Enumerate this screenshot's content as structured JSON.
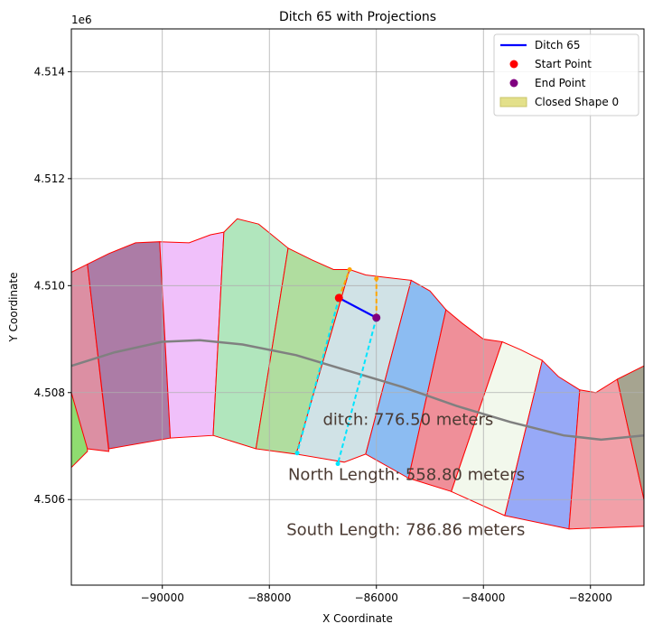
{
  "chart_data": {
    "type": "scatter",
    "title": "Ditch 65 with Projections",
    "xlabel": "X Coordinate",
    "ylabel": "Y Coordinate",
    "y_offset_label": "1e6",
    "xlim": [
      -91700,
      -81000
    ],
    "ylim": [
      4504400,
      4514800
    ],
    "y_scale": 1000000,
    "x_ticks": [
      -90000,
      -88000,
      -86000,
      -84000,
      -82000
    ],
    "y_ticks": [
      4506000,
      4508000,
      4510000,
      4512000,
      4514000
    ],
    "x_tick_labels": [
      "−90000",
      "−88000",
      "−86000",
      "−84000",
      "−82000"
    ],
    "y_tick_labels": [
      "4.506",
      "4.508",
      "4.510",
      "4.512",
      "4.514"
    ],
    "grid": true,
    "legend_position": "top-right",
    "legend": [
      {
        "label": "Ditch 65",
        "kind": "line",
        "color": "#0000ff"
      },
      {
        "label": "Start Point",
        "kind": "marker",
        "color": "#ff0000"
      },
      {
        "label": "End Point",
        "kind": "marker",
        "color": "#800080"
      },
      {
        "label": "Closed Shape 0",
        "kind": "patch",
        "color": "#e3e08a"
      }
    ],
    "shapes": [
      {
        "color": "#8fdc70",
        "points": [
          [
            -91700,
            4508100
          ],
          [
            -91400,
            4507300
          ],
          [
            -91400,
            4506900
          ],
          [
            -91700,
            4506600
          ]
        ]
      },
      {
        "color": "#dc8fa3",
        "points": [
          [
            -91700,
            4510250
          ],
          [
            -91400,
            4510400
          ],
          [
            -91000,
            4506900
          ],
          [
            -91400,
            4506950
          ],
          [
            -91700,
            4508000
          ]
        ]
      },
      {
        "color": "#ac7ca6",
        "points": [
          [
            -91400,
            4510400
          ],
          [
            -91000,
            4510600
          ],
          [
            -90500,
            4510800
          ],
          [
            -90050,
            4510820
          ],
          [
            -89850,
            4507150
          ],
          [
            -91000,
            4506950
          ]
        ]
      },
      {
        "color": "#f0c0fa",
        "points": [
          [
            -90050,
            4510820
          ],
          [
            -89500,
            4510800
          ],
          [
            -89100,
            4510950
          ],
          [
            -88850,
            4511000
          ],
          [
            -89050,
            4507200
          ],
          [
            -89850,
            4507150
          ]
        ]
      },
      {
        "color": "#b1e6bd",
        "points": [
          [
            -88850,
            4511000
          ],
          [
            -88600,
            4511250
          ],
          [
            -88200,
            4511150
          ],
          [
            -87650,
            4510700
          ],
          [
            -88250,
            4506950
          ],
          [
            -89050,
            4507200
          ]
        ]
      },
      {
        "color": "#b0dd9f",
        "points": [
          [
            -87650,
            4510700
          ],
          [
            -87200,
            4510480
          ],
          [
            -86800,
            4510300
          ],
          [
            -86500,
            4510300
          ],
          [
            -87500,
            4506850
          ],
          [
            -88250,
            4506950
          ]
        ]
      },
      {
        "color": "#d0e2e6",
        "points": [
          [
            -86500,
            4510300
          ],
          [
            -86200,
            4510200
          ],
          [
            -85800,
            4510150
          ],
          [
            -85350,
            4510100
          ],
          [
            -86200,
            4506850
          ],
          [
            -86600,
            4506700
          ],
          [
            -87500,
            4506850
          ]
        ]
      },
      {
        "color": "#8cbcf2",
        "points": [
          [
            -85350,
            4510100
          ],
          [
            -85000,
            4509900
          ],
          [
            -84700,
            4509550
          ],
          [
            -85400,
            4506400
          ],
          [
            -86200,
            4506850
          ]
        ]
      },
      {
        "color": "#ef8f99",
        "points": [
          [
            -84700,
            4509550
          ],
          [
            -84400,
            4509300
          ],
          [
            -84000,
            4509000
          ],
          [
            -83650,
            4508950
          ],
          [
            -84600,
            4506150
          ],
          [
            -85400,
            4506400
          ]
        ]
      },
      {
        "color": "#f2f8ec",
        "points": [
          [
            -83650,
            4508950
          ],
          [
            -83300,
            4508800
          ],
          [
            -82900,
            4508600
          ],
          [
            -83600,
            4505700
          ],
          [
            -84600,
            4506150
          ]
        ]
      },
      {
        "color": "#97a9f7",
        "points": [
          [
            -82900,
            4508600
          ],
          [
            -82600,
            4508300
          ],
          [
            -82200,
            4508050
          ],
          [
            -82400,
            4505450
          ],
          [
            -83600,
            4505700
          ]
        ]
      },
      {
        "color": "#f2a0a8",
        "points": [
          [
            -82200,
            4508050
          ],
          [
            -81900,
            4508000
          ],
          [
            -81500,
            4508250
          ],
          [
            -81000,
            4506000
          ],
          [
            -81000,
            4505500
          ],
          [
            -82400,
            4505450
          ]
        ]
      },
      {
        "color": "#a6a490",
        "points": [
          [
            -81500,
            4508250
          ],
          [
            -81000,
            4508500
          ],
          [
            -81000,
            4506000
          ]
        ]
      }
    ],
    "centerline": {
      "color": "#808080",
      "points": [
        [
          -91700,
          4508500
        ],
        [
          -90900,
          4508750
        ],
        [
          -90000,
          4508950
        ],
        [
          -89300,
          4508980
        ],
        [
          -88500,
          4508900
        ],
        [
          -87500,
          4508700
        ],
        [
          -86500,
          4508400
        ],
        [
          -85500,
          4508100
        ],
        [
          -84500,
          4507750
        ],
        [
          -83500,
          4507450
        ],
        [
          -82500,
          4507200
        ],
        [
          -81800,
          4507120
        ],
        [
          -81000,
          4507200
        ]
      ]
    },
    "ditch": {
      "label": "Ditch 65",
      "color": "#0000ff",
      "start": [
        -86700,
        4509770
      ],
      "end": [
        -86000,
        4509400
      ]
    },
    "start_point": {
      "label": "Start Point",
      "color": "#ff0000",
      "x": -86700,
      "y": 4509770
    },
    "end_point": {
      "label": "End Point",
      "color": "#800080",
      "x": -86000,
      "y": 4509400
    },
    "projections": [
      {
        "color": "#ffa500",
        "from": [
          -86700,
          4509770
        ],
        "to": [
          -86500,
          4510300
        ]
      },
      {
        "color": "#ffa500",
        "from": [
          -86000,
          4509400
        ],
        "to": [
          -86000,
          4510130
        ]
      },
      {
        "color": "#00e5ff",
        "from": [
          -86700,
          4509770
        ],
        "to": [
          -87480,
          4506870
        ]
      },
      {
        "color": "#00e5ff",
        "from": [
          -86000,
          4509400
        ],
        "to": [
          -86720,
          4506670
        ]
      }
    ],
    "annotations": [
      {
        "text": "ditch: 776.50 meters",
        "x": -87000,
        "y": 4507400
      },
      {
        "text": "North Length: 558.80 meters",
        "x": -87650,
        "y": 4506370
      },
      {
        "text": "South Length: 786.86 meters",
        "x": -87680,
        "y": 4505340
      }
    ]
  }
}
